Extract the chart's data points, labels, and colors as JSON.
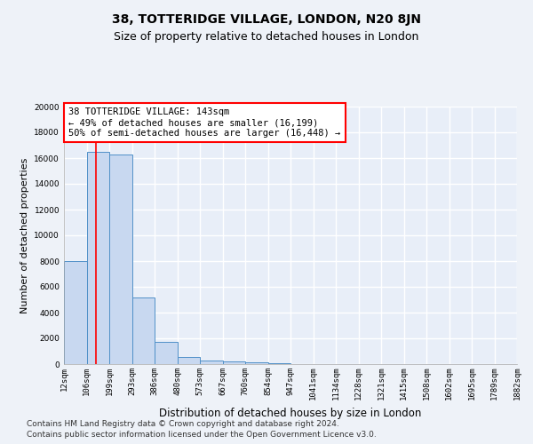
{
  "title": "38, TOTTERIDGE VILLAGE, LONDON, N20 8JN",
  "subtitle": "Size of property relative to detached houses in London",
  "xlabel": "Distribution of detached houses by size in London",
  "ylabel": "Number of detached properties",
  "bin_edges": [
    12,
    106,
    199,
    293,
    386,
    480,
    573,
    667,
    760,
    854,
    947,
    1041,
    1134,
    1228,
    1321,
    1415,
    1508,
    1602,
    1695,
    1789,
    1882
  ],
  "bar_heights": [
    8000,
    16500,
    16300,
    5200,
    1700,
    550,
    300,
    200,
    120,
    80,
    0,
    0,
    0,
    0,
    0,
    0,
    0,
    0,
    0,
    0
  ],
  "bar_color": "#c8d8f0",
  "bar_edge_color": "#5090c8",
  "red_line_x": 143,
  "annotation_text": "38 TOTTERIDGE VILLAGE: 143sqm\n← 49% of detached houses are smaller (16,199)\n50% of semi-detached houses are larger (16,448) →",
  "annotation_box_color": "white",
  "annotation_box_edge_color": "red",
  "ylim": [
    0,
    20000
  ],
  "yticks": [
    0,
    2000,
    4000,
    6000,
    8000,
    10000,
    12000,
    14000,
    16000,
    18000,
    20000
  ],
  "tick_labels": [
    "12sqm",
    "106sqm",
    "199sqm",
    "293sqm",
    "386sqm",
    "480sqm",
    "573sqm",
    "667sqm",
    "760sqm",
    "854sqm",
    "947sqm",
    "1041sqm",
    "1134sqm",
    "1228sqm",
    "1321sqm",
    "1415sqm",
    "1508sqm",
    "1602sqm",
    "1695sqm",
    "1789sqm",
    "1882sqm"
  ],
  "footer_line1": "Contains HM Land Registry data © Crown copyright and database right 2024.",
  "footer_line2": "Contains public sector information licensed under the Open Government Licence v3.0.",
  "background_color": "#eef2f8",
  "plot_background_color": "#e8eef8",
  "grid_color": "#ffffff",
  "title_fontsize": 10,
  "subtitle_fontsize": 9,
  "axis_label_fontsize": 8.5,
  "tick_fontsize": 6.5,
  "annotation_fontsize": 7.5,
  "footer_fontsize": 6.5,
  "ylabel_fontsize": 8
}
